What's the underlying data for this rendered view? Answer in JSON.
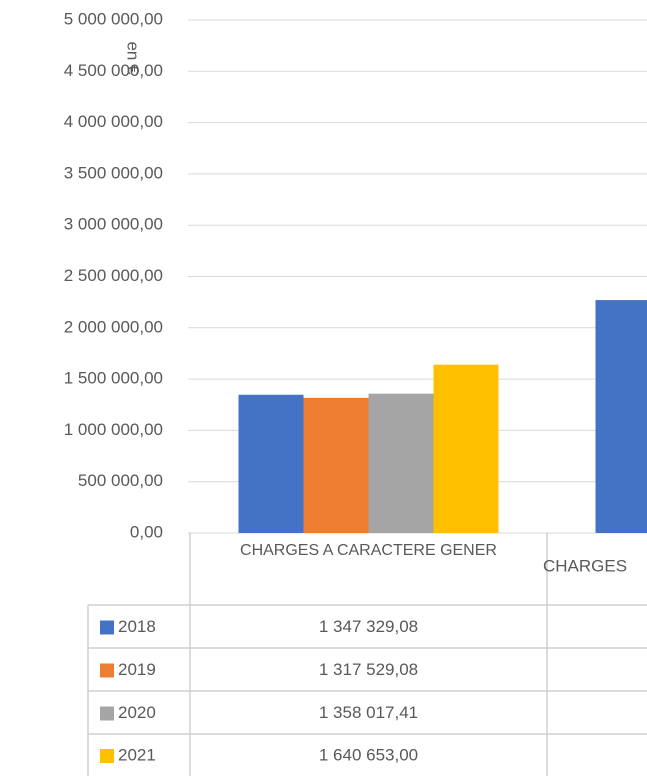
{
  "chart_data": {
    "type": "bar",
    "y_label": "en €",
    "categories": [
      "CHARGES A CARACTERE GENER",
      "CHARGES"
    ],
    "series": [
      {
        "name": "2018",
        "color": "#4472c4",
        "values": [
          1347329.08,
          2270000
        ],
        "value_labels": [
          "1 347 329,08",
          null
        ]
      },
      {
        "name": "2019",
        "color": "#ed7d31",
        "values": [
          1317529.08,
          null
        ],
        "value_labels": [
          "1 317 529,08",
          null
        ]
      },
      {
        "name": "2020",
        "color": "#a5a5a5",
        "values": [
          1358017.41,
          null
        ],
        "value_labels": [
          "1 358 017,41",
          null
        ]
      },
      {
        "name": "2021",
        "color": "#ffc000",
        "values": [
          1640653.0,
          null
        ],
        "value_labels": [
          "1 640 653,00",
          null
        ]
      }
    ],
    "ylim": [
      0,
      5000000
    ],
    "yticks": [
      {
        "value": 0,
        "label": "0,00"
      },
      {
        "value": 500000,
        "label": "500 000,00"
      },
      {
        "value": 1000000,
        "label": "1 000 000,00"
      },
      {
        "value": 1500000,
        "label": "1 500 000,00"
      },
      {
        "value": 2000000,
        "label": "2 000 000,00"
      },
      {
        "value": 2500000,
        "label": "2 500 000,00"
      },
      {
        "value": 3000000,
        "label": "3 000 000,00"
      },
      {
        "value": 3500000,
        "label": "3 500 000,00"
      },
      {
        "value": 4000000,
        "label": "4 000 000,00"
      },
      {
        "value": 4500000,
        "label": "4 500 000,00"
      },
      {
        "value": 5000000,
        "label": "5 000 000,00"
      }
    ],
    "grid": true,
    "data_table": true
  }
}
